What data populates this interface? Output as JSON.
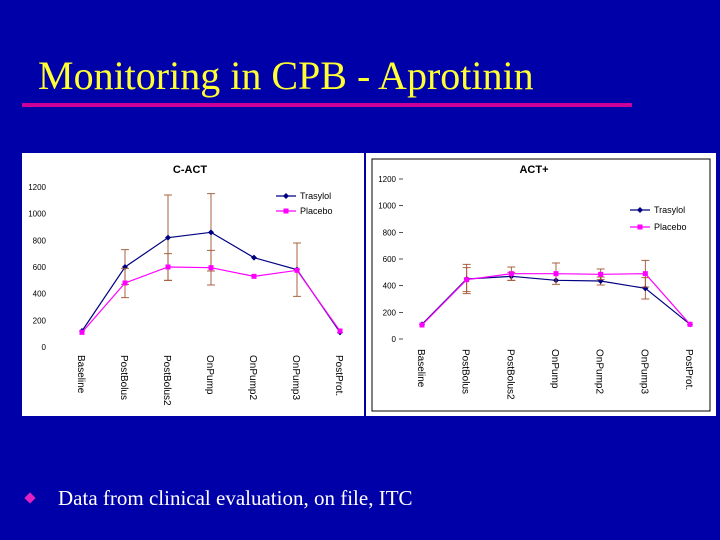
{
  "slide": {
    "title": "Monitoring in CPB - Aprotinin",
    "bullet": "Data from clinical evaluation, on file, ITC",
    "colors": {
      "background": "#0000a8",
      "title": "#ffff33",
      "rule": "#cc0099",
      "bullet_icon": "#e020c0",
      "trasylol": "#000080",
      "placebo": "#ff00ff",
      "error_bars": "#a0522d"
    },
    "bullet_icon": "diamond-bullet-icon"
  },
  "chart_data": [
    {
      "type": "line",
      "title": "C-ACT",
      "categories": [
        "Baseline",
        "PostBolus",
        "PostBolus2",
        "OnPump",
        "OnPump2",
        "OnPump3",
        "PostProt."
      ],
      "ylim": [
        0,
        1200
      ],
      "yticks": [
        0,
        200,
        400,
        600,
        800,
        1000,
        1200
      ],
      "legend_position": "top-right",
      "series": [
        {
          "name": "Trasylol",
          "values": [
            120,
            600,
            820,
            860,
            670,
            580,
            110
          ],
          "error": [
            0,
            130,
            320,
            290,
            0,
            200,
            0
          ]
        },
        {
          "name": "Placebo",
          "values": [
            110,
            480,
            600,
            595,
            530,
            575,
            120
          ],
          "error": [
            0,
            110,
            100,
            130,
            0,
            0,
            0
          ]
        }
      ]
    },
    {
      "type": "line",
      "title": "ACT+",
      "categories": [
        "Baseline",
        "PostBolus",
        "PostBolus2",
        "OnPump",
        "OnPump2",
        "OnPump3",
        "PostProt."
      ],
      "ylim": [
        0,
        1200
      ],
      "yticks": [
        0,
        200,
        400,
        600,
        800,
        1000,
        1200
      ],
      "legend_position": "right",
      "series": [
        {
          "name": "Trasylol",
          "values": [
            110,
            450,
            470,
            440,
            435,
            380,
            110
          ],
          "error": [
            0,
            110,
            30,
            0,
            30,
            80,
            0
          ]
        },
        {
          "name": "Placebo",
          "values": [
            105,
            445,
            490,
            490,
            485,
            490,
            110
          ],
          "error": [
            0,
            90,
            50,
            80,
            40,
            100,
            0
          ]
        }
      ]
    }
  ]
}
